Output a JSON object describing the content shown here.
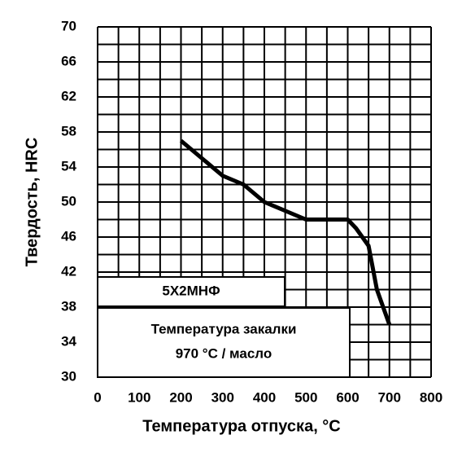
{
  "chart_data": {
    "type": "line",
    "x_label": "Температура отпуска, °С",
    "y_label": "Твердость, HRC",
    "x": [
      200,
      250,
      300,
      350,
      400,
      450,
      500,
      550,
      600,
      620,
      650,
      670,
      700
    ],
    "series": [
      {
        "name": "5Х2МНФ",
        "color": "#000000",
        "values": [
          57,
          55,
          53,
          52,
          50,
          49,
          48,
          48,
          48,
          47,
          45,
          40,
          36
        ]
      }
    ],
    "annotations": [
      "Температура закалки",
      "970 °С / масло"
    ],
    "xlim": [
      0,
      800
    ],
    "xticks": [
      0,
      100,
      200,
      300,
      400,
      500,
      600,
      700,
      800
    ],
    "ylim": [
      30,
      70
    ],
    "yticks": [
      30,
      34,
      38,
      42,
      46,
      50,
      54,
      58,
      62,
      66,
      70
    ],
    "grid": true
  }
}
